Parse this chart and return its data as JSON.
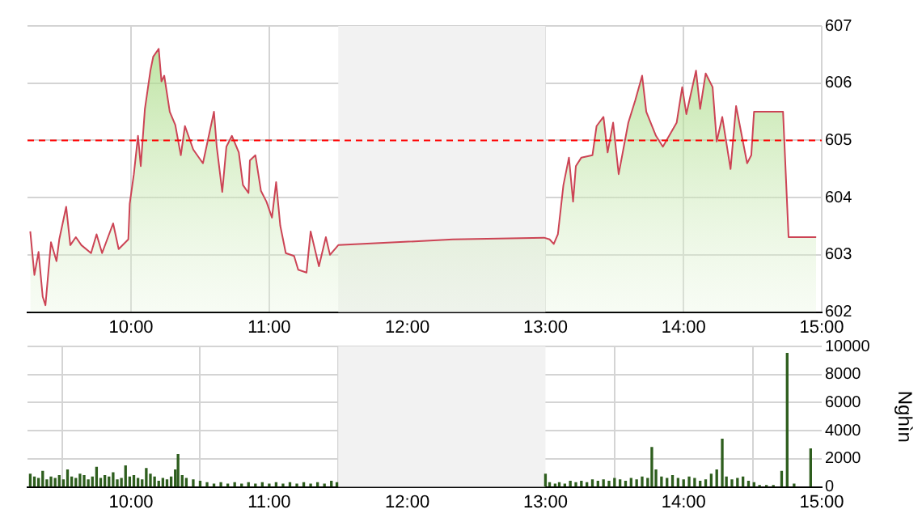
{
  "chart_data": [
    {
      "type": "area",
      "x": [
        9.27,
        9.3,
        9.33,
        9.36,
        9.38,
        9.42,
        9.46,
        9.48,
        9.53,
        9.56,
        9.6,
        9.64,
        9.71,
        9.75,
        9.79,
        9.87,
        9.91,
        9.98,
        9.99,
        10.02,
        10.05,
        10.07,
        10.1,
        10.14,
        10.16,
        10.2,
        10.22,
        10.24,
        10.28,
        10.32,
        10.36,
        10.39,
        10.45,
        10.52,
        10.6,
        10.62,
        10.66,
        10.69,
        10.73,
        10.78,
        10.81,
        10.85,
        10.86,
        10.9,
        10.94,
        10.98,
        11.02,
        11.05,
        11.08,
        11.12,
        11.18,
        11.21,
        11.27,
        11.3,
        11.36,
        11.41,
        11.44,
        11.5,
        12.33,
        12.99,
        13.03,
        13.06,
        13.09,
        13.13,
        13.17,
        13.2,
        13.22,
        13.26,
        13.34,
        13.37,
        13.42,
        13.45,
        13.49,
        13.53,
        13.6,
        13.65,
        13.7,
        13.73,
        13.8,
        13.85,
        13.95,
        13.99,
        14.02,
        14.09,
        14.12,
        14.16,
        14.21,
        14.24,
        14.28,
        14.34,
        14.38,
        14.46,
        14.49,
        14.51,
        14.72,
        14.76,
        14.96
      ],
      "series": [
        {
          "color": "#cc4455",
          "values": [
            603.41,
            602.65,
            603.05,
            602.27,
            602.12,
            603.22,
            602.89,
            603.27,
            603.84,
            603.17,
            603.31,
            603.17,
            603.03,
            603.36,
            603.03,
            603.55,
            603.1,
            603.27,
            603.89,
            604.41,
            605.08,
            604.55,
            605.55,
            606.22,
            606.46,
            606.6,
            606.03,
            606.13,
            605.5,
            605.27,
            604.74,
            605.25,
            604.84,
            604.6,
            605.5,
            604.89,
            604.1,
            604.89,
            605.08,
            604.79,
            604.22,
            604.08,
            604.65,
            604.74,
            604.12,
            603.93,
            603.65,
            604.27,
            603.51,
            603.03,
            602.98,
            602.74,
            602.69,
            603.41,
            602.8,
            603.31,
            603.0,
            603.17,
            603.27,
            603.3,
            603.27,
            603.19,
            603.36,
            604.22,
            604.7,
            603.93,
            604.55,
            604.7,
            604.74,
            605.25,
            605.41,
            604.79,
            605.31,
            604.41,
            605.31,
            605.7,
            606.13,
            605.5,
            605.08,
            604.89,
            605.31,
            605.93,
            605.46,
            606.22,
            605.55,
            606.17,
            605.93,
            604.98,
            605.41,
            604.5,
            605.6,
            604.6,
            604.74,
            605.5,
            605.5,
            603.31,
            603.31
          ]
        }
      ],
      "xlim": [
        9.25,
        15
      ],
      "xticks": [
        {
          "value": 10,
          "label": "10:00"
        },
        {
          "value": 11,
          "label": "11:00"
        },
        {
          "value": 12,
          "label": "12:00"
        },
        {
          "value": 13,
          "label": "13:00"
        },
        {
          "value": 14,
          "label": "14:00"
        },
        {
          "value": 15,
          "label": "15:00"
        }
      ],
      "ylim": [
        602,
        607
      ],
      "yticks": [
        602,
        603,
        604,
        605,
        606,
        607
      ],
      "grid": true,
      "legend": false,
      "ref_lines": [
        {
          "axis": "y",
          "value": 605,
          "color": "#ff0000",
          "line_style": "dashed"
        }
      ],
      "bands": [
        {
          "axis": "x",
          "from": 11.5,
          "to": 13,
          "color": "#f2f2f2"
        }
      ]
    },
    {
      "type": "bar",
      "ylabel": "Nghìn",
      "x": [
        9.27,
        9.3,
        9.33,
        9.36,
        9.39,
        9.42,
        9.45,
        9.48,
        9.51,
        9.54,
        9.57,
        9.6,
        9.63,
        9.66,
        9.69,
        9.72,
        9.75,
        9.78,
        9.81,
        9.84,
        9.87,
        9.9,
        9.93,
        9.96,
        9.99,
        10.02,
        10.05,
        10.08,
        10.11,
        10.14,
        10.17,
        10.2,
        10.23,
        10.26,
        10.29,
        10.32,
        10.34,
        10.37,
        10.4,
        10.45,
        10.5,
        10.55,
        10.6,
        10.65,
        10.7,
        10.75,
        10.8,
        10.85,
        10.9,
        10.95,
        11.0,
        11.05,
        11.1,
        11.15,
        11.2,
        11.25,
        11.3,
        11.35,
        11.4,
        11.45,
        11.49,
        13.0,
        13.03,
        13.07,
        13.1,
        13.14,
        13.18,
        13.22,
        13.26,
        13.3,
        13.34,
        13.38,
        13.42,
        13.46,
        13.5,
        13.54,
        13.58,
        13.62,
        13.66,
        13.7,
        13.74,
        13.77,
        13.8,
        13.84,
        13.88,
        13.92,
        13.96,
        14.0,
        14.04,
        14.08,
        14.12,
        14.16,
        14.2,
        14.24,
        14.28,
        14.31,
        14.35,
        14.39,
        14.43,
        14.47,
        14.51,
        14.55,
        14.6,
        14.65,
        14.71,
        14.75,
        14.8,
        14.92
      ],
      "series": [
        {
          "color": "#2e5e1e",
          "values": [
            900,
            700,
            600,
            1100,
            500,
            700,
            600,
            800,
            500,
            1200,
            700,
            600,
            900,
            800,
            500,
            700,
            1400,
            600,
            800,
            700,
            1000,
            500,
            600,
            1500,
            700,
            800,
            600,
            500,
            1300,
            900,
            700,
            400,
            600,
            500,
            700,
            1200,
            2300,
            800,
            600,
            500,
            400,
            300,
            200,
            300,
            200,
            300,
            200,
            300,
            200,
            300,
            200,
            300,
            200,
            300,
            200,
            300,
            200,
            300,
            200,
            400,
            300,
            900,
            300,
            200,
            300,
            200,
            400,
            300,
            400,
            300,
            500,
            400,
            500,
            400,
            600,
            500,
            400,
            600,
            500,
            700,
            600,
            2800,
            1200,
            700,
            600,
            800,
            600,
            500,
            700,
            600,
            400,
            500,
            900,
            1200,
            3400,
            700,
            500,
            600,
            700,
            400,
            300,
            100,
            100,
            100,
            1100,
            9500,
            200,
            2700
          ]
        }
      ],
      "xlim": [
        9.25,
        15
      ],
      "xticks": [
        {
          "value": 10,
          "label": "10:00"
        },
        {
          "value": 11,
          "label": "11:00"
        },
        {
          "value": 12,
          "label": "12:00"
        },
        {
          "value": 13,
          "label": "13:00"
        },
        {
          "value": 14,
          "label": "14:00"
        },
        {
          "value": 15,
          "label": "15:00"
        }
      ],
      "ylim": [
        0,
        10000
      ],
      "yticks": [
        0,
        2000,
        4000,
        6000,
        8000,
        10000
      ],
      "grid": true,
      "legend": false,
      "bands": [
        {
          "axis": "x",
          "from": 11.5,
          "to": 13,
          "color": "#f2f2f2"
        }
      ]
    }
  ]
}
